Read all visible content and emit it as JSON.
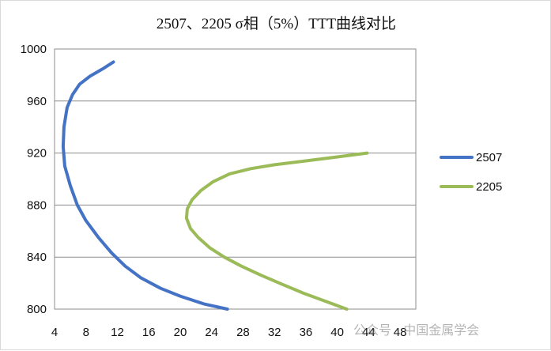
{
  "chart_data": {
    "type": "line",
    "title": "2507、2205 σ相（5%）TTT曲线对比",
    "xlabel": "",
    "ylabel": "",
    "xlim": [
      4,
      50
    ],
    "ylim": [
      800,
      1000
    ],
    "xticks": [
      4,
      8,
      12,
      16,
      20,
      24,
      28,
      32,
      36,
      40,
      44,
      48
    ],
    "yticks": [
      800,
      840,
      880,
      920,
      960,
      1000
    ],
    "grid": "horizontal",
    "legend_position": "right",
    "series": [
      {
        "name": "2507",
        "color": "#4472c4",
        "points": [
          [
            11.5,
            990
          ],
          [
            10.2,
            985
          ],
          [
            8.5,
            979
          ],
          [
            7.2,
            973
          ],
          [
            6.3,
            965
          ],
          [
            5.6,
            955
          ],
          [
            5.2,
            940
          ],
          [
            5.1,
            925
          ],
          [
            5.3,
            910
          ],
          [
            6.0,
            895
          ],
          [
            6.9,
            880
          ],
          [
            8.0,
            868
          ],
          [
            9.6,
            855
          ],
          [
            11.3,
            843
          ],
          [
            13.0,
            833
          ],
          [
            15.0,
            824
          ],
          [
            17.5,
            816
          ],
          [
            20.0,
            810
          ],
          [
            23.0,
            804
          ],
          [
            26.0,
            800
          ]
        ]
      },
      {
        "name": "2205",
        "color": "#9bbb59",
        "points": [
          [
            43.8,
            920
          ],
          [
            40.0,
            917
          ],
          [
            36.0,
            914
          ],
          [
            32.0,
            911
          ],
          [
            29.0,
            908
          ],
          [
            26.3,
            904
          ],
          [
            24.2,
            898
          ],
          [
            22.6,
            891
          ],
          [
            21.5,
            884
          ],
          [
            20.9,
            877
          ],
          [
            20.8,
            870
          ],
          [
            21.3,
            862
          ],
          [
            22.3,
            855
          ],
          [
            23.8,
            847
          ],
          [
            25.6,
            840
          ],
          [
            27.8,
            833
          ],
          [
            30.3,
            826
          ],
          [
            33.0,
            819
          ],
          [
            35.8,
            812
          ],
          [
            38.5,
            806
          ],
          [
            41.2,
            800
          ]
        ]
      }
    ]
  },
  "watermark": "公众号 · 中国金属学会"
}
